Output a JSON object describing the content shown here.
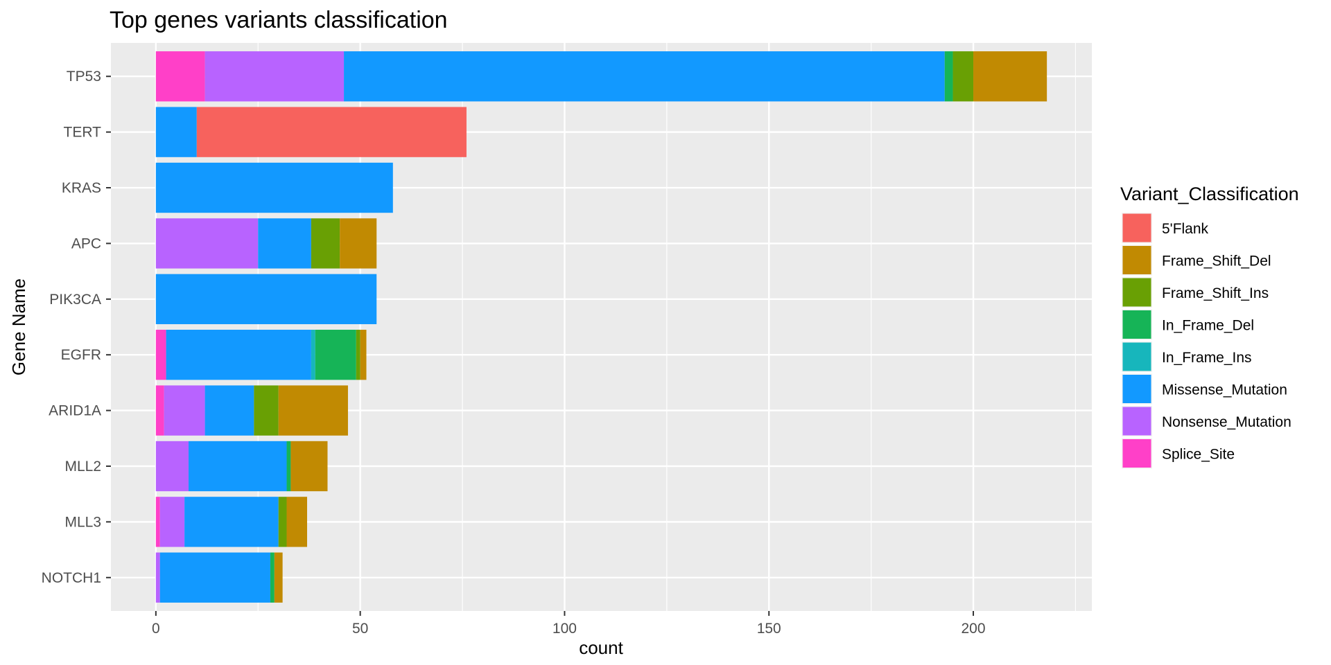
{
  "chart_data": {
    "type": "bar",
    "orientation": "horizontal",
    "stacked": true,
    "title": "Top genes variants classification",
    "xlabel": "count",
    "ylabel": "Gene Name",
    "xlim": [
      -11,
      229
    ],
    "xticks": [
      0,
      50,
      100,
      150,
      200
    ],
    "grid": true,
    "legend": {
      "title": "Variant_Classification",
      "placement": "right"
    },
    "categories": [
      "TP53",
      "TERT",
      "KRAS",
      "APC",
      "PIK3CA",
      "EGFR",
      "ARID1A",
      "MLL2",
      "MLL3",
      "NOTCH1"
    ],
    "series": [
      {
        "name": "Splice_Site",
        "color": "#FF40C8",
        "values": [
          12,
          0,
          0,
          0,
          0,
          2.5,
          2,
          0,
          1,
          0
        ]
      },
      {
        "name": "Nonsense_Mutation",
        "color": "#B863FF",
        "values": [
          34,
          0,
          0,
          25,
          0,
          0,
          10,
          8,
          6,
          1
        ]
      },
      {
        "name": "Missense_Mutation",
        "color": "#1299FF",
        "values": [
          147,
          10,
          58,
          13,
          54,
          35.5,
          12,
          24,
          23,
          27
        ]
      },
      {
        "name": "In_Frame_Ins",
        "color": "#17B6BC",
        "values": [
          0,
          0,
          0,
          0,
          0,
          1,
          0,
          0,
          0,
          0
        ]
      },
      {
        "name": "In_Frame_Del",
        "color": "#16B457",
        "values": [
          2,
          0,
          0,
          0,
          0,
          10,
          0,
          1,
          0,
          1
        ]
      },
      {
        "name": "Frame_Shift_Ins",
        "color": "#69A004",
        "values": [
          5,
          0,
          0,
          7,
          0,
          1,
          6,
          0,
          2,
          0
        ]
      },
      {
        "name": "Frame_Shift_Del",
        "color": "#C18A02",
        "values": [
          18,
          0,
          0,
          9,
          0,
          1.5,
          17,
          9,
          5,
          2
        ]
      },
      {
        "name": "5'Flank",
        "color": "#F7625D",
        "values": [
          0,
          66,
          0,
          0,
          0,
          0,
          0,
          0,
          0,
          0
        ]
      }
    ],
    "legend_order": [
      "5'Flank",
      "Frame_Shift_Del",
      "Frame_Shift_Ins",
      "In_Frame_Del",
      "In_Frame_Ins",
      "Missense_Mutation",
      "Nonsense_Mutation",
      "Splice_Site"
    ]
  }
}
